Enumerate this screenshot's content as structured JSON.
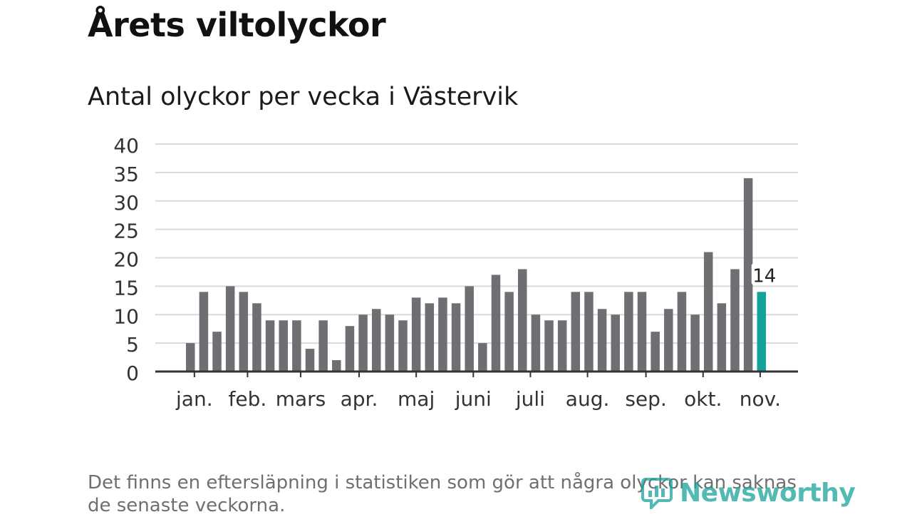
{
  "title": "Årets viltolyckor",
  "subtitle": "Antal olyckor per vecka i Västervik",
  "footnote": "Det finns en eftersläpning i statistiken som gör att några olyckor kan saknas de senaste veckorna.",
  "brand": {
    "name": "Newsworthy",
    "icon": "newsworthy-logo-icon",
    "color": "#1aa39a"
  },
  "colors": {
    "bar": "#6f6e73",
    "highlight": "#12a39a",
    "grid": "#d9d9d9",
    "axis": "#333333"
  },
  "chart_data": {
    "type": "bar",
    "title": "Antal olyckor per vecka i Västervik",
    "xlabel": "",
    "ylabel": "",
    "ylim": [
      0,
      40
    ],
    "yticks": [
      0,
      5,
      10,
      15,
      20,
      25,
      30,
      35,
      40
    ],
    "values": [
      5,
      14,
      7,
      15,
      14,
      12,
      9,
      9,
      9,
      4,
      9,
      2,
      8,
      10,
      11,
      10,
      9,
      13,
      12,
      13,
      12,
      15,
      5,
      17,
      14,
      18,
      10,
      9,
      9,
      14,
      14,
      11,
      10,
      14,
      14,
      7,
      11,
      14,
      10,
      21,
      12,
      18,
      34,
      14
    ],
    "highlight_index": 43,
    "highlight_label": "14",
    "months": [
      {
        "label": "jan.",
        "week": 0.3
      },
      {
        "label": "feb.",
        "week": 4.3
      },
      {
        "label": "mars",
        "week": 8.3
      },
      {
        "label": "apr.",
        "week": 12.7
      },
      {
        "label": "maj",
        "week": 17
      },
      {
        "label": "juni",
        "week": 21.3
      },
      {
        "label": "juli",
        "week": 25.6
      },
      {
        "label": "aug.",
        "week": 29.9
      },
      {
        "label": "sep.",
        "week": 34.3
      },
      {
        "label": "okt.",
        "week": 38.6
      },
      {
        "label": "nov.",
        "week": 42.9
      }
    ]
  }
}
